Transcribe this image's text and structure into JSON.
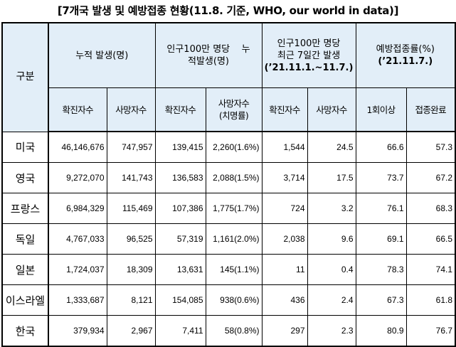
{
  "title": "[7개국 발생 및 예방접종 현황(11.8. 기준, WHO, our world in data)]",
  "header": {
    "gubun": "구분",
    "group_cumulative": "누적 발생(명)",
    "group_per_million_line1": "인구100만 명당",
    "group_per_million_line1b": "누",
    "group_per_million_line2": "적발생(명)",
    "group_recent_line1": "인구100만 명당",
    "group_recent_line2": "최근 7일간 발생",
    "group_recent_line3": "(’21.11.1.~11.7.)",
    "group_vaccine_line1": "예방접종률(%)",
    "group_vaccine_line2": "(’21.11.7.)",
    "sub_confirmed": "확진자수",
    "sub_deaths": "사망자수",
    "sub_deaths_line1": "사망자수",
    "sub_deaths_line2": "(치명률)",
    "sub_first_dose": "1회이상",
    "sub_full": "접종완료"
  },
  "rows": [
    {
      "country": "미국",
      "cum_cases": "46,146,676",
      "cum_deaths": "747,957",
      "pm_cases": "139,415",
      "pm_deaths": "2,260(1.6%)",
      "recent_cases": "1,544",
      "recent_deaths": "24.5",
      "vac_first": "66.6",
      "vac_full": "57.3"
    },
    {
      "country": "영국",
      "cum_cases": "9,272,070",
      "cum_deaths": "141,743",
      "pm_cases": "136,583",
      "pm_deaths": "2,088(1.5%)",
      "recent_cases": "3,714",
      "recent_deaths": "17.5",
      "vac_first": "73.7",
      "vac_full": "67.2"
    },
    {
      "country": "프랑스",
      "cum_cases": "6,984,329",
      "cum_deaths": "115,469",
      "pm_cases": "107,386",
      "pm_deaths": "1,775(1.7%)",
      "recent_cases": "724",
      "recent_deaths": "3.2",
      "vac_first": "76.1",
      "vac_full": "68.3"
    },
    {
      "country": "독일",
      "cum_cases": "4,767,033",
      "cum_deaths": "96,525",
      "pm_cases": "57,319",
      "pm_deaths": "1,161(2.0%)",
      "recent_cases": "2,038",
      "recent_deaths": "9.6",
      "vac_first": "69.1",
      "vac_full": "66.5"
    },
    {
      "country": "일본",
      "cum_cases": "1,724,037",
      "cum_deaths": "18,309",
      "pm_cases": "13,631",
      "pm_deaths": "145(1.1%)",
      "recent_cases": "11",
      "recent_deaths": "0.4",
      "vac_first": "78.3",
      "vac_full": "74.1"
    },
    {
      "country": "이스라엘",
      "cum_cases": "1,333,687",
      "cum_deaths": "8,121",
      "pm_cases": "154,085",
      "pm_deaths": "938(0.6%)",
      "recent_cases": "436",
      "recent_deaths": "2.4",
      "vac_first": "67.3",
      "vac_full": "61.8"
    },
    {
      "country": "한국",
      "cum_cases": "379,934",
      "cum_deaths": "2,967",
      "pm_cases": "7,411",
      "pm_deaths": "58(0.8%)",
      "recent_cases": "297",
      "recent_deaths": "2.3",
      "vac_first": "80.9",
      "vac_full": "76.7"
    }
  ]
}
